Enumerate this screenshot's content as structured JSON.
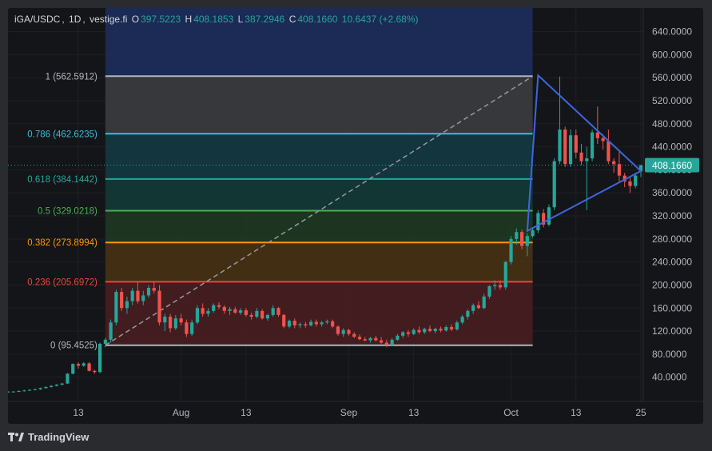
{
  "symbol": {
    "pair": "iGA/USDC",
    "interval": "1D",
    "exchange": "vestige.fi",
    "open_label": "O",
    "open": "397.5223",
    "high_label": "H",
    "high": "408.1853",
    "low_label": "L",
    "low": "387.2946",
    "close_label": "C",
    "close": "408.1660",
    "change": "10.6437 (+2.68%)"
  },
  "brand": "TradingView",
  "colors": {
    "up": "#26a69a",
    "down": "#ef5350",
    "triangle": "#3d66e0",
    "price_tag": "#26a69a"
  },
  "chart_data": {
    "type": "candlestick",
    "y_axis": {
      "min": 10,
      "max": 650,
      "ticks": [
        40,
        80,
        120,
        160,
        200,
        240,
        280,
        320,
        360,
        400,
        440,
        480,
        520,
        560,
        600,
        640
      ],
      "tick_labels": [
        "40.0000",
        "80.0000",
        "120.0000",
        "160.0000",
        "200.0000",
        "240.0000",
        "280.0000",
        "320.0000",
        "360.0000",
        "400.0000",
        "440.0000",
        "480.0000",
        "520.0000",
        "560.0000",
        "600.0000",
        "640.0000"
      ]
    },
    "x_axis": {
      "start": "2023-06-30",
      "end": "2023-10-25",
      "tick_labels": [
        {
          "date": "2023-07-13",
          "label": "13"
        },
        {
          "date": "2023-08-01",
          "label": "Aug"
        },
        {
          "date": "2023-08-13",
          "label": "13"
        },
        {
          "date": "2023-09-01",
          "label": "Sep"
        },
        {
          "date": "2023-09-13",
          "label": "13"
        },
        {
          "date": "2023-10-01",
          "label": "Oct"
        },
        {
          "date": "2023-10-13",
          "label": "13"
        },
        {
          "date": "2023-10-25",
          "label": "25"
        }
      ]
    },
    "last_price": "408.1660",
    "last_price_value": 408.166,
    "fibonacci": {
      "start_date": "2023-07-18",
      "end_date": "2023-10-05",
      "levels": [
        {
          "ratio": "1",
          "price": 562.5912,
          "label": "1 (562.5912)",
          "color": "#b2b5be",
          "fill": "#3d3e42"
        },
        {
          "ratio": "0.786",
          "price": 462.6235,
          "label": "0.786 (462.6235)",
          "color": "#38bdd9",
          "fill": "#133b44"
        },
        {
          "ratio": "0.618",
          "price": 384.1442,
          "label": "0.618 (384.1442)",
          "color": "#26a69a",
          "fill": "#113c38"
        },
        {
          "ratio": "0.5",
          "price": 329.0218,
          "label": "0.5 (329.0218)",
          "color": "#4caf50",
          "fill": "#1f3b22"
        },
        {
          "ratio": "0.382",
          "price": 273.8994,
          "label": "0.382 (273.8994)",
          "color": "#ff9800",
          "fill": "#4a3313"
        },
        {
          "ratio": "0.236",
          "price": 205.6972,
          "label": "0.236 (205.6972)",
          "color": "#f44336",
          "fill": "#4a1d21"
        },
        {
          "ratio": "0",
          "price": 95.4525,
          "label": "0 (95.4525)",
          "color": "#b2b5be",
          "fill": ""
        }
      ],
      "top_zone_fill": "#1c2d5c"
    },
    "triangle": [
      {
        "date": "2023-10-04",
        "price": 294
      },
      {
        "date": "2023-10-06",
        "price": 564
      },
      {
        "date": "2023-10-25",
        "price": 398
      }
    ],
    "candles": [
      {
        "date": "2023-06-30",
        "o": 14,
        "h": 16,
        "l": 13,
        "c": 15
      },
      {
        "date": "2023-07-01",
        "o": 15,
        "h": 16,
        "l": 14,
        "c": 15
      },
      {
        "date": "2023-07-02",
        "o": 15,
        "h": 17,
        "l": 14,
        "c": 16
      },
      {
        "date": "2023-07-03",
        "o": 16,
        "h": 18,
        "l": 15,
        "c": 17
      },
      {
        "date": "2023-07-04",
        "o": 17,
        "h": 19,
        "l": 16,
        "c": 18
      },
      {
        "date": "2023-07-05",
        "o": 18,
        "h": 20,
        "l": 17,
        "c": 19
      },
      {
        "date": "2023-07-06",
        "o": 19,
        "h": 22,
        "l": 18,
        "c": 21
      },
      {
        "date": "2023-07-07",
        "o": 21,
        "h": 24,
        "l": 20,
        "c": 23
      },
      {
        "date": "2023-07-08",
        "o": 23,
        "h": 26,
        "l": 22,
        "c": 25
      },
      {
        "date": "2023-07-09",
        "o": 25,
        "h": 28,
        "l": 24,
        "c": 27
      },
      {
        "date": "2023-07-10",
        "o": 27,
        "h": 30,
        "l": 26,
        "c": 29
      },
      {
        "date": "2023-07-11",
        "o": 29,
        "h": 47,
        "l": 28,
        "c": 46
      },
      {
        "date": "2023-07-12",
        "o": 46,
        "h": 64,
        "l": 45,
        "c": 63
      },
      {
        "date": "2023-07-13",
        "o": 63,
        "h": 66,
        "l": 55,
        "c": 60
      },
      {
        "date": "2023-07-14",
        "o": 60,
        "h": 66,
        "l": 58,
        "c": 64
      },
      {
        "date": "2023-07-15",
        "o": 64,
        "h": 66,
        "l": 50,
        "c": 51
      },
      {
        "date": "2023-07-16",
        "o": 51,
        "h": 53,
        "l": 46,
        "c": 49
      },
      {
        "date": "2023-07-17",
        "o": 49,
        "h": 100,
        "l": 47,
        "c": 98
      },
      {
        "date": "2023-07-18",
        "o": 98,
        "h": 108,
        "l": 92,
        "c": 105
      },
      {
        "date": "2023-07-19",
        "o": 105,
        "h": 140,
        "l": 100,
        "c": 135
      },
      {
        "date": "2023-07-20",
        "o": 135,
        "h": 192,
        "l": 130,
        "c": 188
      },
      {
        "date": "2023-07-21",
        "o": 188,
        "h": 195,
        "l": 155,
        "c": 160
      },
      {
        "date": "2023-07-22",
        "o": 160,
        "h": 180,
        "l": 150,
        "c": 172
      },
      {
        "date": "2023-07-23",
        "o": 172,
        "h": 195,
        "l": 165,
        "c": 190
      },
      {
        "date": "2023-07-24",
        "o": 190,
        "h": 205,
        "l": 168,
        "c": 172
      },
      {
        "date": "2023-07-25",
        "o": 172,
        "h": 190,
        "l": 165,
        "c": 182
      },
      {
        "date": "2023-07-26",
        "o": 182,
        "h": 200,
        "l": 178,
        "c": 195
      },
      {
        "date": "2023-07-27",
        "o": 195,
        "h": 205,
        "l": 185,
        "c": 190
      },
      {
        "date": "2023-07-28",
        "o": 190,
        "h": 200,
        "l": 130,
        "c": 135
      },
      {
        "date": "2023-07-29",
        "o": 135,
        "h": 150,
        "l": 120,
        "c": 145
      },
      {
        "date": "2023-07-30",
        "o": 145,
        "h": 150,
        "l": 118,
        "c": 125
      },
      {
        "date": "2023-07-31",
        "o": 125,
        "h": 148,
        "l": 122,
        "c": 142
      },
      {
        "date": "2023-08-01",
        "o": 142,
        "h": 150,
        "l": 130,
        "c": 135
      },
      {
        "date": "2023-08-02",
        "o": 135,
        "h": 140,
        "l": 110,
        "c": 115
      },
      {
        "date": "2023-08-03",
        "o": 115,
        "h": 140,
        "l": 112,
        "c": 135
      },
      {
        "date": "2023-08-04",
        "o": 135,
        "h": 165,
        "l": 132,
        "c": 160
      },
      {
        "date": "2023-08-05",
        "o": 160,
        "h": 168,
        "l": 145,
        "c": 150
      },
      {
        "date": "2023-08-06",
        "o": 150,
        "h": 160,
        "l": 145,
        "c": 155
      },
      {
        "date": "2023-08-07",
        "o": 155,
        "h": 168,
        "l": 152,
        "c": 165
      },
      {
        "date": "2023-08-08",
        "o": 165,
        "h": 170,
        "l": 158,
        "c": 162
      },
      {
        "date": "2023-08-09",
        "o": 162,
        "h": 165,
        "l": 150,
        "c": 155
      },
      {
        "date": "2023-08-10",
        "o": 155,
        "h": 162,
        "l": 148,
        "c": 158
      },
      {
        "date": "2023-08-11",
        "o": 158,
        "h": 162,
        "l": 150,
        "c": 152
      },
      {
        "date": "2023-08-12",
        "o": 152,
        "h": 160,
        "l": 148,
        "c": 156
      },
      {
        "date": "2023-08-13",
        "o": 156,
        "h": 160,
        "l": 145,
        "c": 148
      },
      {
        "date": "2023-08-14",
        "o": 148,
        "h": 152,
        "l": 140,
        "c": 145
      },
      {
        "date": "2023-08-15",
        "o": 145,
        "h": 160,
        "l": 142,
        "c": 155
      },
      {
        "date": "2023-08-16",
        "o": 155,
        "h": 158,
        "l": 140,
        "c": 142
      },
      {
        "date": "2023-08-17",
        "o": 142,
        "h": 150,
        "l": 138,
        "c": 148
      },
      {
        "date": "2023-08-18",
        "o": 148,
        "h": 165,
        "l": 145,
        "c": 160
      },
      {
        "date": "2023-08-19",
        "o": 160,
        "h": 162,
        "l": 145,
        "c": 148
      },
      {
        "date": "2023-08-20",
        "o": 148,
        "h": 150,
        "l": 125,
        "c": 128
      },
      {
        "date": "2023-08-21",
        "o": 128,
        "h": 140,
        "l": 125,
        "c": 138
      },
      {
        "date": "2023-08-22",
        "o": 138,
        "h": 142,
        "l": 125,
        "c": 130
      },
      {
        "date": "2023-08-23",
        "o": 130,
        "h": 135,
        "l": 125,
        "c": 132
      },
      {
        "date": "2023-08-24",
        "o": 132,
        "h": 136,
        "l": 126,
        "c": 130
      },
      {
        "date": "2023-08-25",
        "o": 130,
        "h": 140,
        "l": 128,
        "c": 136
      },
      {
        "date": "2023-08-26",
        "o": 136,
        "h": 140,
        "l": 128,
        "c": 132
      },
      {
        "date": "2023-08-27",
        "o": 132,
        "h": 138,
        "l": 128,
        "c": 135
      },
      {
        "date": "2023-08-28",
        "o": 135,
        "h": 140,
        "l": 132,
        "c": 137
      },
      {
        "date": "2023-08-29",
        "o": 137,
        "h": 140,
        "l": 125,
        "c": 128
      },
      {
        "date": "2023-08-30",
        "o": 128,
        "h": 130,
        "l": 112,
        "c": 115
      },
      {
        "date": "2023-08-31",
        "o": 115,
        "h": 125,
        "l": 110,
        "c": 122
      },
      {
        "date": "2023-09-01",
        "o": 122,
        "h": 124,
        "l": 112,
        "c": 115
      },
      {
        "date": "2023-09-02",
        "o": 115,
        "h": 118,
        "l": 108,
        "c": 110
      },
      {
        "date": "2023-09-03",
        "o": 110,
        "h": 114,
        "l": 104,
        "c": 106
      },
      {
        "date": "2023-09-04",
        "o": 106,
        "h": 110,
        "l": 102,
        "c": 104
      },
      {
        "date": "2023-09-05",
        "o": 104,
        "h": 110,
        "l": 100,
        "c": 108
      },
      {
        "date": "2023-09-06",
        "o": 108,
        "h": 112,
        "l": 102,
        "c": 104
      },
      {
        "date": "2023-09-07",
        "o": 104,
        "h": 110,
        "l": 98,
        "c": 100
      },
      {
        "date": "2023-09-08",
        "o": 100,
        "h": 105,
        "l": 92,
        "c": 96
      },
      {
        "date": "2023-09-09",
        "o": 96,
        "h": 108,
        "l": 94,
        "c": 105
      },
      {
        "date": "2023-09-10",
        "o": 105,
        "h": 115,
        "l": 103,
        "c": 112
      },
      {
        "date": "2023-09-11",
        "o": 112,
        "h": 120,
        "l": 108,
        "c": 118
      },
      {
        "date": "2023-09-12",
        "o": 118,
        "h": 122,
        "l": 110,
        "c": 115
      },
      {
        "date": "2023-09-13",
        "o": 115,
        "h": 125,
        "l": 113,
        "c": 122
      },
      {
        "date": "2023-09-14",
        "o": 122,
        "h": 128,
        "l": 115,
        "c": 118
      },
      {
        "date": "2023-09-15",
        "o": 118,
        "h": 126,
        "l": 115,
        "c": 124
      },
      {
        "date": "2023-09-16",
        "o": 124,
        "h": 130,
        "l": 118,
        "c": 120
      },
      {
        "date": "2023-09-17",
        "o": 120,
        "h": 126,
        "l": 116,
        "c": 124
      },
      {
        "date": "2023-09-18",
        "o": 124,
        "h": 128,
        "l": 118,
        "c": 121
      },
      {
        "date": "2023-09-19",
        "o": 121,
        "h": 130,
        "l": 119,
        "c": 127
      },
      {
        "date": "2023-09-20",
        "o": 127,
        "h": 132,
        "l": 120,
        "c": 123
      },
      {
        "date": "2023-09-21",
        "o": 123,
        "h": 138,
        "l": 121,
        "c": 135
      },
      {
        "date": "2023-09-22",
        "o": 135,
        "h": 148,
        "l": 132,
        "c": 145
      },
      {
        "date": "2023-09-23",
        "o": 145,
        "h": 158,
        "l": 140,
        "c": 155
      },
      {
        "date": "2023-09-24",
        "o": 155,
        "h": 168,
        "l": 150,
        "c": 165
      },
      {
        "date": "2023-09-25",
        "o": 165,
        "h": 172,
        "l": 158,
        "c": 160
      },
      {
        "date": "2023-09-26",
        "o": 160,
        "h": 185,
        "l": 158,
        "c": 180
      },
      {
        "date": "2023-09-27",
        "o": 180,
        "h": 200,
        "l": 176,
        "c": 198
      },
      {
        "date": "2023-09-28",
        "o": 198,
        "h": 208,
        "l": 192,
        "c": 200
      },
      {
        "date": "2023-09-29",
        "o": 200,
        "h": 208,
        "l": 192,
        "c": 196
      },
      {
        "date": "2023-09-30",
        "o": 196,
        "h": 242,
        "l": 192,
        "c": 240
      },
      {
        "date": "2023-10-01",
        "o": 240,
        "h": 285,
        "l": 236,
        "c": 280
      },
      {
        "date": "2023-10-02",
        "o": 280,
        "h": 298,
        "l": 270,
        "c": 292
      },
      {
        "date": "2023-10-03",
        "o": 292,
        "h": 296,
        "l": 262,
        "c": 268
      },
      {
        "date": "2023-10-04",
        "o": 268,
        "h": 290,
        "l": 250,
        "c": 285
      },
      {
        "date": "2023-10-05",
        "o": 285,
        "h": 300,
        "l": 282,
        "c": 295
      },
      {
        "date": "2023-10-06",
        "o": 295,
        "h": 330,
        "l": 290,
        "c": 325
      },
      {
        "date": "2023-10-07",
        "o": 325,
        "h": 332,
        "l": 300,
        "c": 305
      },
      {
        "date": "2023-10-08",
        "o": 305,
        "h": 340,
        "l": 302,
        "c": 335
      },
      {
        "date": "2023-10-09",
        "o": 335,
        "h": 420,
        "l": 330,
        "c": 415
      },
      {
        "date": "2023-10-10",
        "o": 415,
        "h": 562,
        "l": 410,
        "c": 470
      },
      {
        "date": "2023-10-11",
        "o": 470,
        "h": 475,
        "l": 405,
        "c": 410
      },
      {
        "date": "2023-10-12",
        "o": 410,
        "h": 470,
        "l": 405,
        "c": 460
      },
      {
        "date": "2023-10-13",
        "o": 460,
        "h": 470,
        "l": 420,
        "c": 430
      },
      {
        "date": "2023-10-14",
        "o": 430,
        "h": 445,
        "l": 408,
        "c": 415
      },
      {
        "date": "2023-10-15",
        "o": 415,
        "h": 440,
        "l": 330,
        "c": 420
      },
      {
        "date": "2023-10-16",
        "o": 420,
        "h": 470,
        "l": 415,
        "c": 465
      },
      {
        "date": "2023-10-17",
        "o": 465,
        "h": 510,
        "l": 445,
        "c": 455
      },
      {
        "date": "2023-10-18",
        "o": 455,
        "h": 462,
        "l": 435,
        "c": 450
      },
      {
        "date": "2023-10-19",
        "o": 450,
        "h": 470,
        "l": 410,
        "c": 415
      },
      {
        "date": "2023-10-20",
        "o": 415,
        "h": 420,
        "l": 395,
        "c": 410
      },
      {
        "date": "2023-10-21",
        "o": 410,
        "h": 435,
        "l": 380,
        "c": 390
      },
      {
        "date": "2023-10-22",
        "o": 390,
        "h": 395,
        "l": 370,
        "c": 380
      },
      {
        "date": "2023-10-23",
        "o": 380,
        "h": 388,
        "l": 360,
        "c": 372
      },
      {
        "date": "2023-10-24",
        "o": 372,
        "h": 395,
        "l": 368,
        "c": 390
      },
      {
        "date": "2023-10-25",
        "o": 397.5223,
        "h": 408.1853,
        "l": 387.2946,
        "c": 408.166
      }
    ]
  }
}
